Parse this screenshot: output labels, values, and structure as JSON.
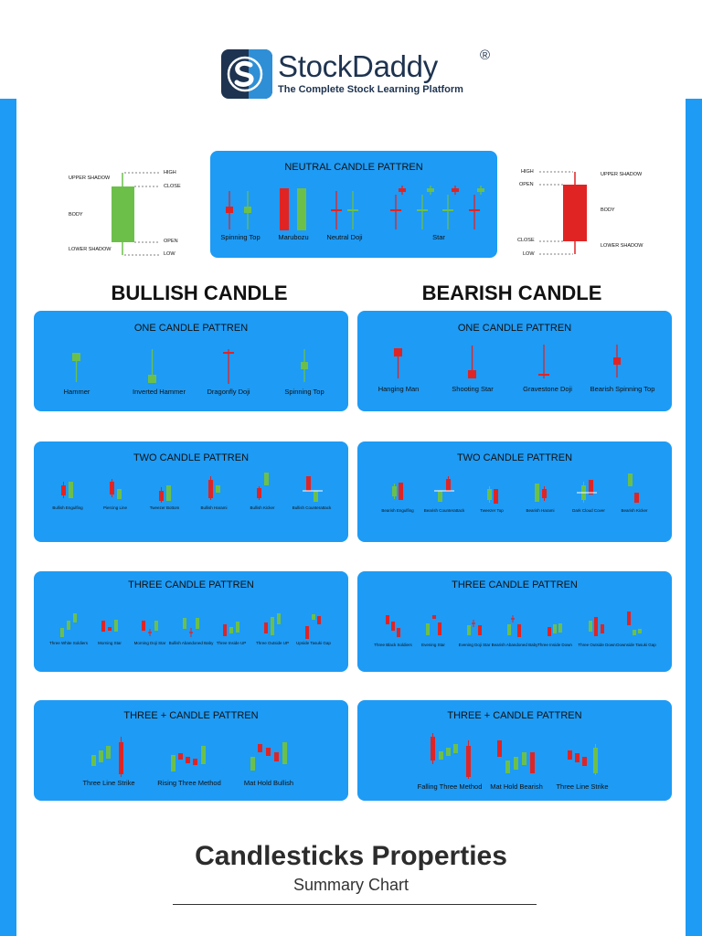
{
  "brand": {
    "name": "StockDaddy",
    "reg": "®",
    "tagline": "The Complete Stock Learning Platform"
  },
  "colors": {
    "bull": "#6cc04a",
    "bear": "#e02424",
    "panel": "#1e9bf5",
    "navy": "#1e3350"
  },
  "bull_anatomy": {
    "upper_shadow": "UPPER SHADOW",
    "body": "BODY",
    "lower_shadow": "LOWER SHADOW",
    "high": "HIGH",
    "close": "CLOSE",
    "open": "OPEN",
    "low": "LOW"
  },
  "bear_anatomy": {
    "high": "HIGH",
    "open": "OPEN",
    "close": "CLOSE",
    "low": "LOW",
    "upper_shadow": "UPPER SHADOW",
    "body": "BODY",
    "lower_shadow": "LOWER SHADOW"
  },
  "neutral": {
    "title": "NEUTRAL CANDLE PATTREN",
    "labels": [
      "Spinning Top",
      "Marubozu",
      "Neutral Doji",
      "Star"
    ]
  },
  "sections": {
    "bullish": "BULLISH CANDLE",
    "bearish": "BEARISH CANDLE"
  },
  "bull_one": {
    "title": "ONE CANDLE PATTREN",
    "labels": [
      "Hammer",
      "Inverted Hammer",
      "Dragonfly Doji",
      "Spinning Top"
    ]
  },
  "bear_one": {
    "title": "ONE CANDLE PATTREN",
    "labels": [
      "Hanging Man",
      "Shooting Star",
      "Gravestone Doji",
      "Bearish Spinning Top"
    ]
  },
  "bull_two": {
    "title": "TWO CANDLE PATTREN",
    "labels": [
      "Bullish Engulfing",
      "Piercing Line",
      "Tweezer Bottom",
      "Bullish Harami",
      "Bullish Kicker",
      "Bullish Counterattack"
    ]
  },
  "bear_two": {
    "title": "TWO CANDLE PATTREN",
    "labels": [
      "Bearish Engulfing",
      "Bearish Counterattack",
      "Tweezer Top",
      "Bearish Harami",
      "Dark Cloud Cover",
      "Bearish Kicker"
    ]
  },
  "bull_three": {
    "title": "THREE CANDLE PATTREN",
    "labels": [
      "Three White Soldiers",
      "Morning Star",
      "Morning Doji Star",
      "Bullish Abandoned Baby",
      "Three Inside UP",
      "Three Outside UP",
      "Upside Tasuki Gap"
    ]
  },
  "bear_three": {
    "title": "THREE CANDLE PATTREN",
    "labels": [
      "Three Black Soldiers",
      "Evening Star",
      "Evening Doji Star",
      "Bearish Abandoned Baby",
      "Three Inside Down",
      "Three Outside Down",
      "Downside Tasuki Gap"
    ]
  },
  "bull_plus": {
    "title": "THREE + CANDLE PATTREN",
    "labels": [
      "Three Line Strike",
      "Rising Three Method",
      "Mat Hold Bullish"
    ]
  },
  "bear_plus": {
    "title": "THREE + CANDLE PATTREN",
    "labels": [
      "Falling Three Method",
      "Mat Hold Bearish",
      "Three Line Strike"
    ]
  },
  "footer": {
    "title": "Candlesticks Properties",
    "subtitle": "Summary Chart"
  }
}
